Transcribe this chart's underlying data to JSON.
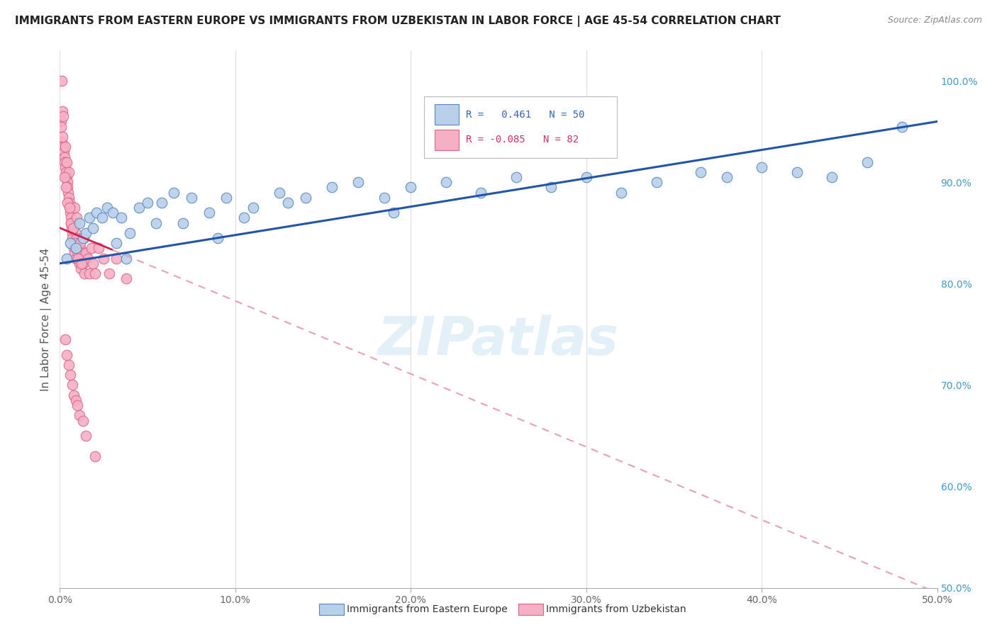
{
  "title": "IMMIGRANTS FROM EASTERN EUROPE VS IMMIGRANTS FROM UZBEKISTAN IN LABOR FORCE | AGE 45-54 CORRELATION CHART",
  "source": "Source: ZipAtlas.com",
  "ylabel": "In Labor Force | Age 45-54",
  "xlim": [
    0.0,
    50.0
  ],
  "ylim": [
    50.0,
    103.0
  ],
  "x_ticks": [
    0.0,
    10.0,
    20.0,
    30.0,
    40.0,
    50.0
  ],
  "x_tick_labels": [
    "0.0%",
    "10.0%",
    "20.0%",
    "30.0%",
    "40.0%",
    "50.0%"
  ],
  "y_ticks": [
    50.0,
    60.0,
    70.0,
    80.0,
    90.0,
    100.0
  ],
  "y_tick_labels_right": [
    "50.0%",
    "60.0%",
    "70.0%",
    "80.0%",
    "90.0%",
    "100.0%"
  ],
  "legend_blue_label": "Immigrants from Eastern Europe",
  "legend_pink_label": "Immigrants from Uzbekistan",
  "R_blue": 0.461,
  "N_blue": 50,
  "R_pink": -0.085,
  "N_pink": 82,
  "blue_color": "#b8d0ea",
  "blue_edge_color": "#5588bb",
  "pink_color": "#f5b0c5",
  "pink_edge_color": "#dd6688",
  "blue_line_color": "#2255aa",
  "pink_line_color": "#cc2255",
  "pink_dash_color": "#e8a0b8",
  "watermark": "ZIPatlas",
  "title_fontsize": 11,
  "source_fontsize": 9,
  "marker_size": 10,
  "blue_intercept": 82.0,
  "blue_slope": 0.28,
  "pink_intercept": 85.5,
  "pink_slope": -0.72,
  "pink_solid_end": 3.0,
  "blue_points_x": [
    0.4,
    0.6,
    0.9,
    1.1,
    1.3,
    1.5,
    1.7,
    1.9,
    2.1,
    2.4,
    2.7,
    3.0,
    3.5,
    4.0,
    4.5,
    5.0,
    5.5,
    6.5,
    7.5,
    8.5,
    9.5,
    11.0,
    12.5,
    14.0,
    15.5,
    17.0,
    18.5,
    20.0,
    22.0,
    24.0,
    26.0,
    28.0,
    30.0,
    32.0,
    34.0,
    36.5,
    38.0,
    40.0,
    42.0,
    44.0,
    46.0,
    48.0,
    3.2,
    3.8,
    5.8,
    7.0,
    9.0,
    10.5,
    13.0,
    19.0
  ],
  "blue_points_y": [
    82.5,
    84.0,
    83.5,
    86.0,
    84.5,
    85.0,
    86.5,
    85.5,
    87.0,
    86.5,
    87.5,
    87.0,
    86.5,
    85.0,
    87.5,
    88.0,
    86.0,
    89.0,
    88.5,
    87.0,
    88.5,
    87.5,
    89.0,
    88.5,
    89.5,
    90.0,
    88.5,
    89.5,
    90.0,
    89.0,
    90.5,
    89.5,
    90.5,
    89.0,
    90.0,
    91.0,
    90.5,
    91.5,
    91.0,
    90.5,
    92.0,
    95.5,
    84.0,
    82.5,
    88.0,
    86.0,
    84.5,
    86.5,
    88.0,
    87.0
  ],
  "pink_points_x": [
    0.05,
    0.08,
    0.1,
    0.12,
    0.15,
    0.18,
    0.2,
    0.22,
    0.25,
    0.28,
    0.3,
    0.32,
    0.35,
    0.38,
    0.4,
    0.42,
    0.45,
    0.48,
    0.5,
    0.52,
    0.55,
    0.58,
    0.6,
    0.63,
    0.65,
    0.68,
    0.7,
    0.72,
    0.75,
    0.78,
    0.8,
    0.82,
    0.85,
    0.88,
    0.9,
    0.92,
    0.95,
    0.98,
    1.0,
    1.05,
    1.1,
    1.15,
    1.2,
    1.25,
    1.3,
    1.35,
    1.4,
    1.5,
    1.6,
    1.7,
    1.8,
    1.9,
    2.0,
    2.2,
    2.5,
    2.8,
    3.2,
    3.8,
    0.15,
    0.25,
    0.35,
    0.45,
    0.55,
    0.65,
    0.75,
    0.85,
    0.95,
    1.05,
    1.15,
    1.25,
    0.3,
    0.4,
    0.5,
    0.6,
    0.7,
    0.8,
    0.9,
    1.0,
    1.1,
    1.3,
    1.5,
    2.0
  ],
  "pink_points_y": [
    96.0,
    95.5,
    100.0,
    94.0,
    97.0,
    93.5,
    96.5,
    93.0,
    92.5,
    92.0,
    91.5,
    93.5,
    91.0,
    90.5,
    92.0,
    90.0,
    89.5,
    89.0,
    88.5,
    91.0,
    88.0,
    87.5,
    87.0,
    86.5,
    86.0,
    85.5,
    85.0,
    84.5,
    86.0,
    84.0,
    83.5,
    87.5,
    83.0,
    86.0,
    82.5,
    85.0,
    84.5,
    84.0,
    83.5,
    83.0,
    82.0,
    83.5,
    81.5,
    83.0,
    82.0,
    84.5,
    81.0,
    83.0,
    82.5,
    81.0,
    83.5,
    82.0,
    81.0,
    83.5,
    82.5,
    81.0,
    82.5,
    80.5,
    94.5,
    90.5,
    89.5,
    88.0,
    87.5,
    86.0,
    85.5,
    84.0,
    86.5,
    82.5,
    84.0,
    82.0,
    74.5,
    73.0,
    72.0,
    71.0,
    70.0,
    69.0,
    68.5,
    68.0,
    67.0,
    66.5,
    65.0,
    63.0
  ]
}
